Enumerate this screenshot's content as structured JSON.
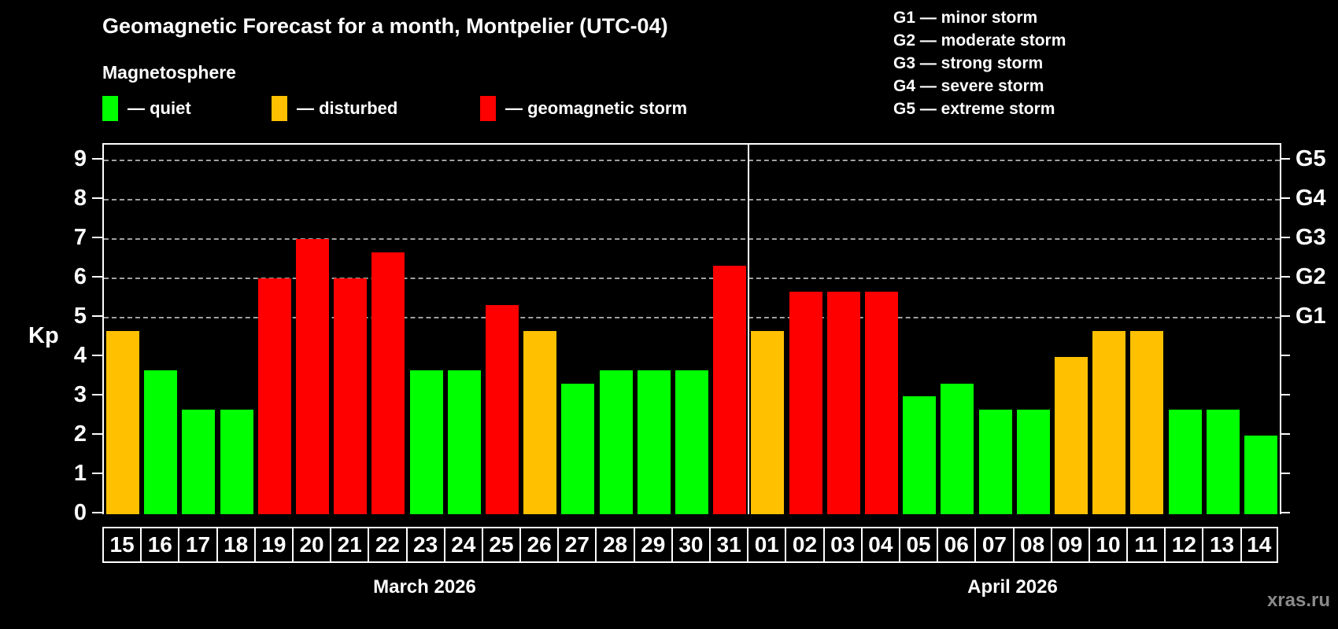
{
  "title": "Geomagnetic Forecast for a month, Montpelier (UTC-04)",
  "subtitle": "Magnetosphere",
  "legend": {
    "items": [
      {
        "name": "quiet",
        "label": "— quiet",
        "color": "#00ff00"
      },
      {
        "name": "disturbed",
        "label": "— disturbed",
        "color": "#ffc000"
      },
      {
        "name": "storm",
        "label": "— geomagnetic storm",
        "color": "#ff0000"
      }
    ]
  },
  "g_legend": [
    "G1 — minor storm",
    "G2 — moderate storm",
    "G3 — strong storm",
    "G4 — severe storm",
    "G5 — extreme storm"
  ],
  "watermark": "xras.ru",
  "colors": {
    "background": "#000000",
    "axis": "#ffffff",
    "grid": "#a0a0a0",
    "text": "#ffffff",
    "watermark": "#8a8a8a",
    "quiet": "#00ff00",
    "disturbed": "#ffc000",
    "storm": "#ff0000"
  },
  "chart_data": {
    "type": "bar",
    "title": "Geomagnetic Forecast for a month, Montpelier (UTC-04)",
    "ylabel": "Kp",
    "ylim": [
      0,
      9.4
    ],
    "yticks": [
      0,
      1,
      2,
      3,
      4,
      5,
      6,
      7,
      8,
      9
    ],
    "gridline_values": [
      5,
      6,
      7,
      8,
      9
    ],
    "grid": "dashed, only at storm levels 5-9",
    "legend_position": "top",
    "right_ticks": [
      {
        "value": 5,
        "label": "G1"
      },
      {
        "value": 6,
        "label": "G2"
      },
      {
        "value": 7,
        "label": "G3"
      },
      {
        "value": 8,
        "label": "G4"
      },
      {
        "value": 9,
        "label": "G5"
      }
    ],
    "months": [
      {
        "label": "March 2026",
        "days": [
          {
            "day": "15",
            "value": 4.67,
            "status": "disturbed"
          },
          {
            "day": "16",
            "value": 3.67,
            "status": "quiet"
          },
          {
            "day": "17",
            "value": 2.67,
            "status": "quiet"
          },
          {
            "day": "18",
            "value": 2.67,
            "status": "quiet"
          },
          {
            "day": "19",
            "value": 6.0,
            "status": "storm"
          },
          {
            "day": "20",
            "value": 7.0,
            "status": "storm"
          },
          {
            "day": "21",
            "value": 6.0,
            "status": "storm"
          },
          {
            "day": "22",
            "value": 6.67,
            "status": "storm"
          },
          {
            "day": "23",
            "value": 3.67,
            "status": "quiet"
          },
          {
            "day": "24",
            "value": 3.67,
            "status": "quiet"
          },
          {
            "day": "25",
            "value": 5.33,
            "status": "storm"
          },
          {
            "day": "26",
            "value": 4.67,
            "status": "disturbed"
          },
          {
            "day": "27",
            "value": 3.33,
            "status": "quiet"
          },
          {
            "day": "28",
            "value": 3.67,
            "status": "quiet"
          },
          {
            "day": "29",
            "value": 3.67,
            "status": "quiet"
          },
          {
            "day": "30",
            "value": 3.67,
            "status": "quiet"
          },
          {
            "day": "31",
            "value": 6.33,
            "status": "storm"
          }
        ]
      },
      {
        "label": "April 2026",
        "days": [
          {
            "day": "01",
            "value": 4.67,
            "status": "disturbed"
          },
          {
            "day": "02",
            "value": 5.67,
            "status": "storm"
          },
          {
            "day": "03",
            "value": 5.67,
            "status": "storm"
          },
          {
            "day": "04",
            "value": 5.67,
            "status": "storm"
          },
          {
            "day": "05",
            "value": 3.0,
            "status": "quiet"
          },
          {
            "day": "06",
            "value": 3.33,
            "status": "quiet"
          },
          {
            "day": "07",
            "value": 2.67,
            "status": "quiet"
          },
          {
            "day": "08",
            "value": 2.67,
            "status": "quiet"
          },
          {
            "day": "09",
            "value": 4.0,
            "status": "disturbed"
          },
          {
            "day": "10",
            "value": 4.67,
            "status": "disturbed"
          },
          {
            "day": "11",
            "value": 4.67,
            "status": "disturbed"
          },
          {
            "day": "12",
            "value": 2.67,
            "status": "quiet"
          },
          {
            "day": "13",
            "value": 2.67,
            "status": "quiet"
          },
          {
            "day": "14",
            "value": 2.0,
            "status": "quiet"
          }
        ]
      }
    ]
  }
}
